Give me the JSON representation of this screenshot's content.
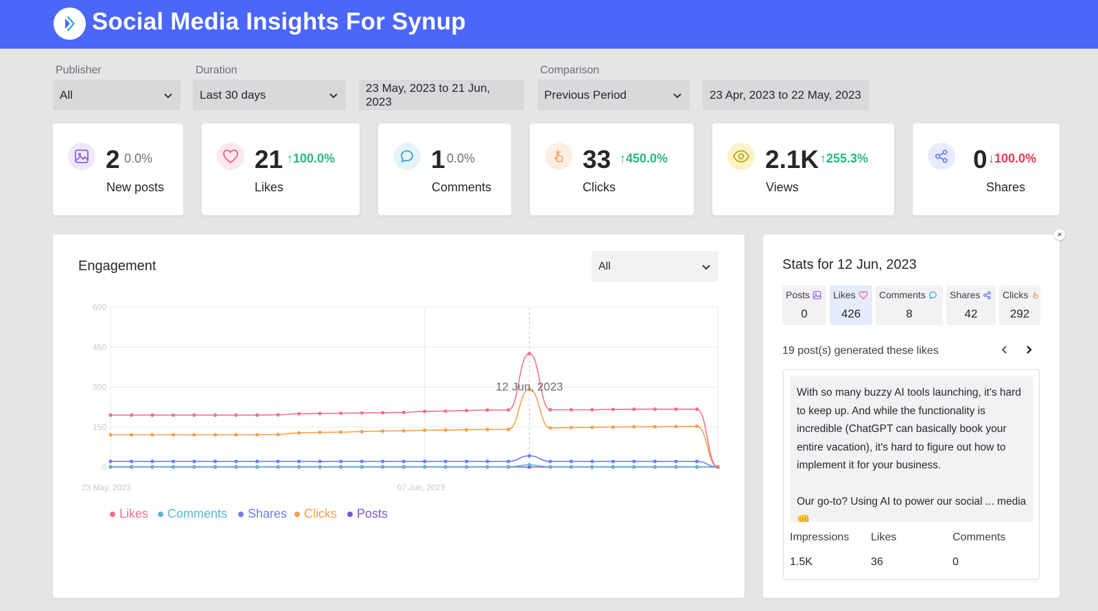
{
  "app": {
    "title": "Social Media Insights For Synup",
    "logo_icon": "synup-logo-icon"
  },
  "filters": {
    "publisher": {
      "label": "Publisher",
      "value": "All"
    },
    "duration": {
      "label": "Duration",
      "value": "Last 30 days",
      "range": "23 May, 2023 to 21 Jun, 2023"
    },
    "comparison": {
      "label": "Comparison",
      "value": "Previous Period",
      "range": "23 Apr, 2023 to 22 May, 2023"
    }
  },
  "metrics": [
    {
      "value": "2",
      "delta": "0.0%",
      "label": "New posts",
      "icon": "image-icon",
      "color": "#8b5cf6"
    },
    {
      "value": "21",
      "delta": "100.0%",
      "label": "Likes",
      "icon": "heart-icon",
      "color": "#f25c7a"
    },
    {
      "value": "1",
      "delta": "0.0%",
      "label": "Comments",
      "icon": "comment-icon",
      "color": "#3aa0d8"
    },
    {
      "value": "33",
      "delta": "450.0%",
      "label": "Clicks",
      "icon": "pointer-icon",
      "color": "#f5a05a"
    },
    {
      "value": "2.1K",
      "delta": "255.3%",
      "label": "Views",
      "icon": "eye-icon",
      "color": "#c9a300"
    },
    {
      "value": "0",
      "delta": "100.0%",
      "label": "Shares",
      "icon": "share-icon",
      "color": "#5b6ef5"
    }
  ],
  "engagement": {
    "title": "Engagement",
    "filter_value": "All"
  },
  "chart_data": {
    "type": "line",
    "title": "Engagement",
    "xlabel": "",
    "ylabel": "",
    "ylim": [
      0,
      600
    ],
    "yticks": [
      "600",
      "450",
      "300",
      "150",
      "0"
    ],
    "xtick_labels": [
      "23 May, 2023",
      "07 Jun, 2023"
    ],
    "hover_label": "12 Jun, 2023",
    "hover_index": 20,
    "series": [
      {
        "name": "Likes",
        "color": "#f07089",
        "values": [
          195,
          195,
          195,
          195,
          195,
          195,
          195,
          195,
          196,
          200,
          201,
          202,
          203,
          204,
          205,
          209,
          210,
          212,
          214,
          214,
          426,
          215,
          215,
          215,
          216,
          217,
          217,
          217,
          217,
          0
        ]
      },
      {
        "name": "Comments",
        "color": "#5fb3d9",
        "values": [
          1,
          1,
          1,
          1,
          1,
          1,
          1,
          1,
          1,
          1,
          1,
          1,
          1,
          1,
          1,
          1,
          1,
          1,
          1,
          1,
          8,
          1,
          1,
          1,
          1,
          1,
          1,
          1,
          1,
          0
        ]
      },
      {
        "name": "Shares",
        "color": "#6b7cf7",
        "values": [
          21,
          21,
          21,
          21,
          21,
          21,
          21,
          21,
          21,
          21,
          21,
          21,
          21,
          21,
          21,
          21,
          21,
          21,
          21,
          21,
          42,
          21,
          21,
          21,
          21,
          21,
          21,
          21,
          21,
          0
        ]
      },
      {
        "name": "Clicks",
        "color": "#f5a04a",
        "values": [
          121,
          121,
          121,
          121,
          121,
          121,
          121,
          121,
          122,
          128,
          130,
          131,
          133,
          135,
          136,
          138,
          139,
          140,
          141,
          141,
          292,
          147,
          148,
          149,
          150,
          151,
          151,
          152,
          153,
          0
        ]
      },
      {
        "name": "Posts",
        "color": "#7c55d6",
        "values": [
          0,
          0,
          0,
          0,
          0,
          0,
          0,
          0,
          0,
          0,
          0,
          0,
          0,
          0,
          0,
          0,
          0,
          0,
          0,
          0,
          0,
          0,
          0,
          0,
          0,
          0,
          0,
          0,
          0,
          0
        ]
      }
    ]
  },
  "stats": {
    "title": "Stats for 12 Jun, 2023",
    "cells": [
      {
        "label": "Posts",
        "value": "0",
        "icon": "image-icon"
      },
      {
        "label": "Likes",
        "value": "426",
        "icon": "heart-icon"
      },
      {
        "label": "Comments",
        "value": "8",
        "icon": "comment-icon"
      },
      {
        "label": "Shares",
        "value": "42",
        "icon": "share-icon"
      },
      {
        "label": "Clicks",
        "value": "292",
        "icon": "pointer-icon"
      }
    ],
    "posts_note": "19 post(s) generated these likes",
    "post": {
      "text": "With so many buzzy AI tools launching, it's hard to keep up. And while the functionality is incredible (ChatGPT can basically book your entire vacation), it's hard to figure out how to implement it for your business.\n\nOur go-to? Using AI to power our social ... media 👊",
      "metrics": [
        {
          "label": "Impressions",
          "value": "1.5K"
        },
        {
          "label": "Likes",
          "value": "36"
        },
        {
          "label": "Comments",
          "value": "0"
        }
      ]
    }
  }
}
